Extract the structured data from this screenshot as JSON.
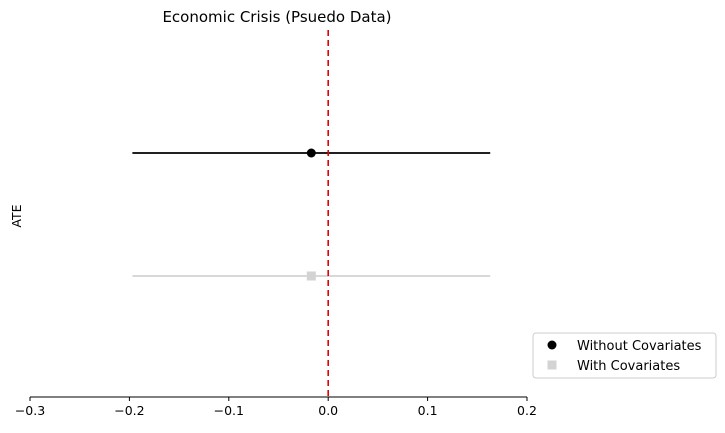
{
  "chart_data": {
    "type": "forest",
    "title": "Economic Crisis (Psuedo Data)",
    "xlabel": "",
    "ylabel": "ATE",
    "xlim": [
      -0.3,
      0.2
    ],
    "xticks": [
      -0.3,
      -0.2,
      -0.1,
      0.0,
      0.1,
      0.2
    ],
    "xtick_labels": [
      "−0.3",
      "−0.2",
      "−0.1",
      "0.0",
      "0.1",
      "0.2"
    ],
    "reference_line": {
      "x": 0.0,
      "color": "#e00000",
      "style": "dashed"
    },
    "grid": false,
    "legend_position": "lower-right-outside",
    "series": [
      {
        "name": "Without Covariates",
        "estimate": -0.017,
        "ci_low": -0.197,
        "ci_high": 0.163,
        "marker": "circle",
        "color": "#000000"
      },
      {
        "name": "With Covariates",
        "estimate": -0.017,
        "ci_low": -0.197,
        "ci_high": 0.163,
        "marker": "square",
        "color": "#d3d3d3"
      }
    ]
  }
}
